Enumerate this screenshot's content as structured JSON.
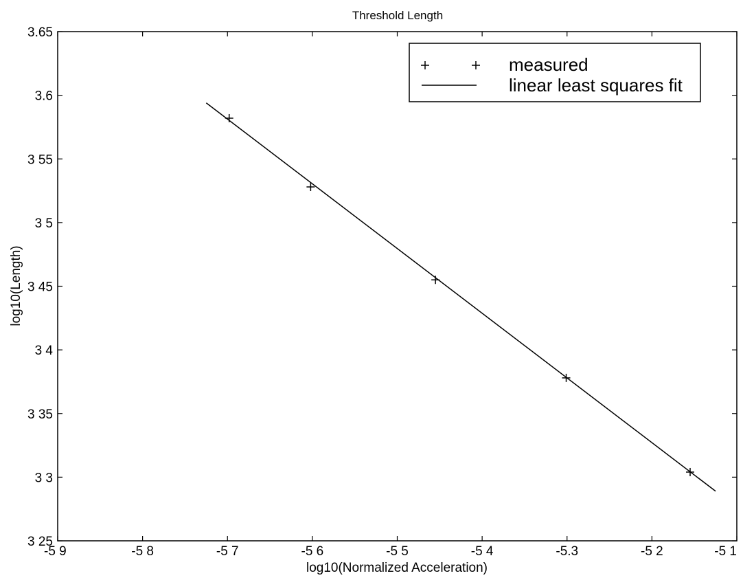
{
  "chart_data": {
    "type": "line",
    "title": "Threshold Length",
    "xlabel": "log10(Normalized Acceleration)",
    "ylabel": "log10(Length)",
    "xlim": [
      -5.9,
      -5.1
    ],
    "ylim": [
      3.25,
      3.65
    ],
    "xticks": [
      -5.9,
      -5.8,
      -5.7,
      -5.6,
      -5.5,
      -5.4,
      -5.3,
      -5.2,
      -5.1
    ],
    "xtick_labels": [
      "-5 9",
      "-5 8",
      "-5 7",
      "-5 6",
      "-5 5",
      "-5 4",
      "-5.3",
      "-5 2",
      "-5 1"
    ],
    "yticks": [
      3.25,
      3.3,
      3.35,
      3.4,
      3.45,
      3.5,
      3.55,
      3.6,
      3.65
    ],
    "ytick_labels": [
      "3 25",
      "3 3",
      "3 35",
      "3 4",
      "3 45",
      "3 5",
      "3 55",
      "3.6",
      "3.65"
    ],
    "grid": false,
    "legend_position": "top-right",
    "series": [
      {
        "name": "measured",
        "style": "markers-plus",
        "x": [
          -5.698,
          -5.602,
          -5.455,
          -5.301,
          -5.155
        ],
        "y": [
          3.582,
          3.528,
          3.455,
          3.378,
          3.304
        ]
      },
      {
        "name": "linear least squares fit",
        "style": "solid-line",
        "x": [
          -5.725,
          -5.125
        ],
        "y": [
          3.594,
          3.289
        ]
      }
    ]
  }
}
